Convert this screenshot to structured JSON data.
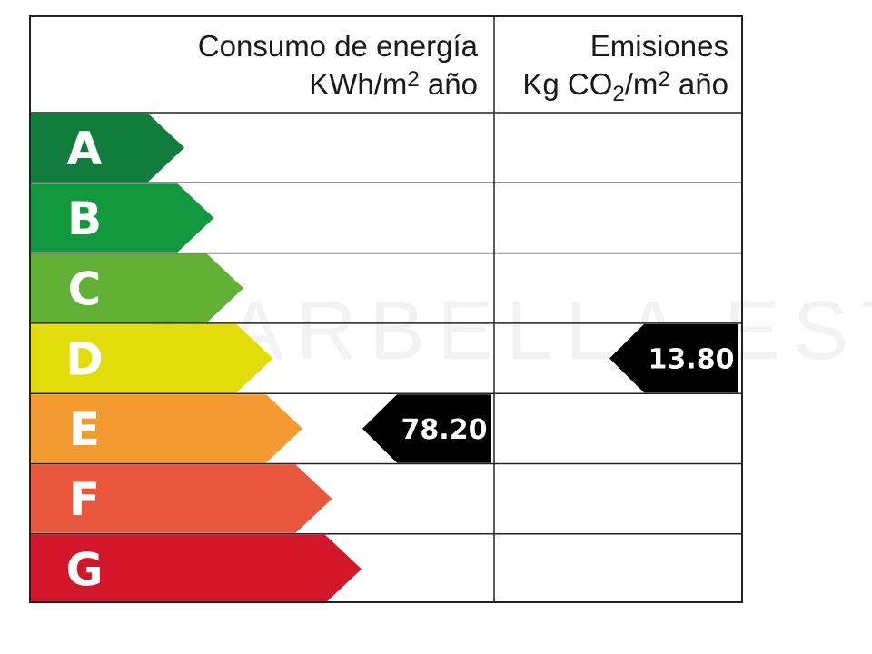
{
  "header": {
    "consumption_line1": "Consumo de energía",
    "consumption_unit_pre": "KWh/m",
    "consumption_unit_sup": "2",
    "consumption_unit_post": " año",
    "emissions_line1": "Emisiones",
    "emissions_unit_kg": "Kg CO",
    "emissions_unit_sub": "2",
    "emissions_unit_mid": "/m",
    "emissions_unit_sup": "2",
    "emissions_unit_post": " año"
  },
  "watermark": "MARBELLA ESTATES",
  "ratings": [
    {
      "letter": "A",
      "color": "#127c3d"
    },
    {
      "letter": "B",
      "color": "#12993f"
    },
    {
      "letter": "C",
      "color": "#62b035"
    },
    {
      "letter": "D",
      "color": "#e3dc0d"
    },
    {
      "letter": "E",
      "color": "#f39a30"
    },
    {
      "letter": "F",
      "color": "#e9573f"
    },
    {
      "letter": "G",
      "color": "#d2172a"
    }
  ],
  "consumption": {
    "value": "78.20",
    "rating_index": 4
  },
  "emissions": {
    "value": "13.80",
    "rating_index": 3
  },
  "indicator_color": "#000000"
}
